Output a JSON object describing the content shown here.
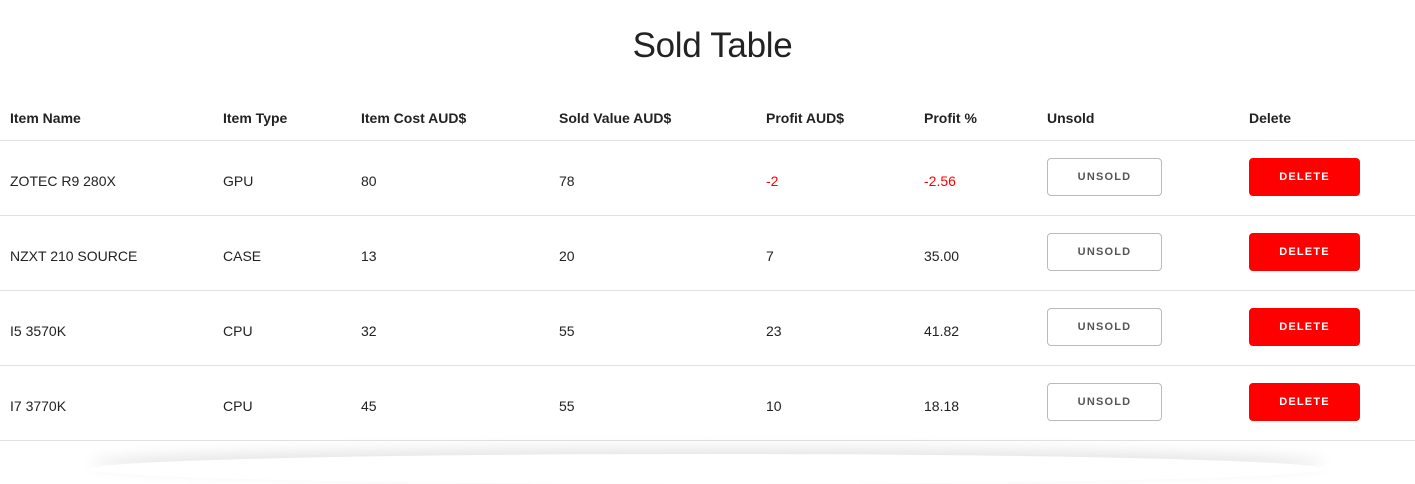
{
  "page": {
    "title": "Sold Table"
  },
  "table": {
    "headers": {
      "item_name": "Item Name",
      "item_type": "Item Type",
      "item_cost": "Item Cost AUD$",
      "sold_value": "Sold Value AUD$",
      "profit": "Profit AUD$",
      "profit_pct": "Profit %",
      "unsold": "Unsold",
      "delete": "Delete"
    },
    "rows": [
      {
        "item_name": "ZOTEC R9 280X",
        "item_type": "GPU",
        "item_cost": "80",
        "sold_value": "78",
        "profit": "-2",
        "profit_pct": "-2.56",
        "unsold_label": "Unsold",
        "delete_label": "Delete"
      },
      {
        "item_name": "NZXT 210 SOURCE",
        "item_type": "CASE",
        "item_cost": "13",
        "sold_value": "20",
        "profit": "7",
        "profit_pct": "35.00",
        "unsold_label": "Unsold",
        "delete_label": "Delete"
      },
      {
        "item_name": "I5 3570K",
        "item_type": "CPU",
        "item_cost": "32",
        "sold_value": "55",
        "profit": "23",
        "profit_pct": "41.82",
        "unsold_label": "Unsold",
        "delete_label": "Delete"
      },
      {
        "item_name": "I7 3770K",
        "item_type": "CPU",
        "item_cost": "45",
        "sold_value": "55",
        "profit": "10",
        "profit_pct": "18.18",
        "unsold_label": "Unsold",
        "delete_label": "Delete"
      }
    ]
  },
  "colors": {
    "negative": "#ff0000",
    "delete_button": "#ff0000",
    "text": "#222222"
  }
}
